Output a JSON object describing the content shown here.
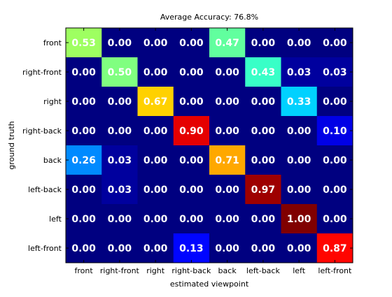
{
  "chart_data": {
    "type": "heatmap",
    "title": "Average Accuracy: 76.8%",
    "xlabel": "estimated viewpoint",
    "ylabel": "ground truth",
    "x_categories": [
      "front",
      "right-front",
      "right",
      "right-back",
      "back",
      "left-back",
      "left",
      "left-front"
    ],
    "y_categories": [
      "front",
      "right-front",
      "right",
      "right-back",
      "back",
      "left-back",
      "left",
      "left-front"
    ],
    "value_range": [
      0,
      1
    ],
    "colormap": "jet",
    "values": [
      [
        0.53,
        0.0,
        0.0,
        0.0,
        0.47,
        0.0,
        0.0,
        0.0
      ],
      [
        0.0,
        0.5,
        0.0,
        0.0,
        0.0,
        0.43,
        0.03,
        0.03
      ],
      [
        0.0,
        0.0,
        0.67,
        0.0,
        0.0,
        0.0,
        0.33,
        0.0
      ],
      [
        0.0,
        0.0,
        0.0,
        0.9,
        0.0,
        0.0,
        0.0,
        0.1
      ],
      [
        0.26,
        0.03,
        0.0,
        0.0,
        0.71,
        0.0,
        0.0,
        0.0
      ],
      [
        0.0,
        0.03,
        0.0,
        0.0,
        0.0,
        0.97,
        0.0,
        0.0
      ],
      [
        0.0,
        0.0,
        0.0,
        0.0,
        0.0,
        0.0,
        1.0,
        0.0
      ],
      [
        0.0,
        0.0,
        0.0,
        0.13,
        0.0,
        0.0,
        0.0,
        0.87
      ]
    ],
    "value_labels": [
      [
        "0.53",
        "0.00",
        "0.00",
        "0.00",
        "0.47",
        "0.00",
        "0.00",
        "0.00"
      ],
      [
        "0.00",
        "0.50",
        "0.00",
        "0.00",
        "0.00",
        "0.43",
        "0.03",
        "0.03"
      ],
      [
        "0.00",
        "0.00",
        "0.67",
        "0.00",
        "0.00",
        "0.00",
        "0.33",
        "0.00"
      ],
      [
        "0.00",
        "0.00",
        "0.00",
        "0.90",
        "0.00",
        "0.00",
        "0.00",
        "0.10"
      ],
      [
        "0.26",
        "0.03",
        "0.00",
        "0.00",
        "0.71",
        "0.00",
        "0.00",
        "0.00"
      ],
      [
        "0.00",
        "0.03",
        "0.00",
        "0.00",
        "0.00",
        "0.97",
        "0.00",
        "0.00"
      ],
      [
        "0.00",
        "0.00",
        "0.00",
        "0.00",
        "0.00",
        "0.00",
        "1.00",
        "0.00"
      ],
      [
        "0.00",
        "0.00",
        "0.00",
        "0.13",
        "0.00",
        "0.00",
        "0.00",
        "0.87"
      ]
    ],
    "grid": false,
    "legend": "none"
  }
}
